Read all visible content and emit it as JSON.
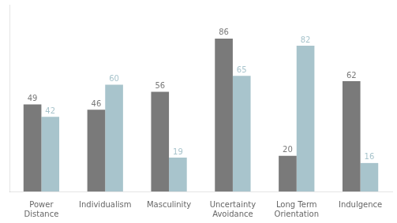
{
  "chart_data": {
    "type": "bar",
    "categories": [
      "Power\nDistance",
      "Individualism",
      "Masculinity",
      "Uncertainty\nAvoidance",
      "Long Term\nOrientation",
      "Indulgence"
    ],
    "series": [
      {
        "color": "#7a7a7a",
        "values": [
          49,
          46,
          56,
          86,
          20,
          62
        ]
      },
      {
        "color": "#a8c4cc",
        "values": [
          42,
          60,
          19,
          65,
          82,
          16
        ]
      }
    ],
    "ylim": [
      0,
      105
    ],
    "yticks": [],
    "grid": false,
    "data_labels": true,
    "tick_labels": "x"
  }
}
